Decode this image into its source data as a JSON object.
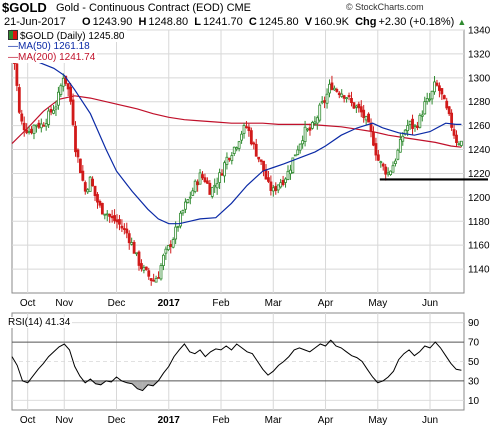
{
  "header": {
    "symbol": "$GOLD",
    "description": "Gold - Continuous Contract (EOD)  CME",
    "source": "© StockCharts.com",
    "date": "21-Jun-2017",
    "open_label": "O",
    "open": "1243.90",
    "high_label": "H",
    "high": "1248.80",
    "low_label": "L",
    "low": "1241.70",
    "close_label": "C",
    "close": "1245.80",
    "volume_label": "V",
    "volume": "160.9K",
    "change_label": "Chg",
    "change": "+2.30 (+0.18%)",
    "change_arrow": "▲"
  },
  "legend": {
    "price": "$GOLD (Daily) 1245.80",
    "ma50": "MA(50) 1261.18",
    "ma200": "MA(200) 1241.74"
  },
  "rsi_label": "RSI(14) 41.34",
  "colors": {
    "up": "#2f8a2f",
    "down": "#d11a1a",
    "ma50": "#0b2aa6",
    "ma200": "#c0102a",
    "grid": "#d8d8d8",
    "rsi": "#000000",
    "rsi_fill": "#7a7a7a"
  },
  "chart_data": [
    {
      "type": "candlestick",
      "title": "$GOLD (Daily)",
      "ylim": [
        1120,
        1340
      ],
      "y_ticks": [
        1140,
        1160,
        1180,
        1200,
        1220,
        1240,
        1260,
        1280,
        1300,
        1320,
        1340
      ],
      "x_ticks": [
        {
          "label": "Oct",
          "x": 0.3
        },
        {
          "label": "Nov",
          "x": 1.0
        },
        {
          "label": "Dec",
          "x": 2.0
        },
        {
          "label": "2017",
          "x": 3.0
        },
        {
          "label": "Feb",
          "x": 4.0
        },
        {
          "label": "Mar",
          "x": 5.0
        },
        {
          "label": "Apr",
          "x": 6.0
        },
        {
          "label": "May",
          "x": 7.0
        },
        {
          "label": "Jun",
          "x": 8.0
        }
      ],
      "x_range": [
        0.0,
        8.65
      ],
      "price_path": [
        [
          0.0,
          1318
        ],
        [
          0.05,
          1312
        ],
        [
          0.1,
          1290
        ],
        [
          0.15,
          1265
        ],
        [
          0.25,
          1258
        ],
        [
          0.35,
          1255
        ],
        [
          0.45,
          1262
        ],
        [
          0.55,
          1260
        ],
        [
          0.65,
          1265
        ],
        [
          0.75,
          1272
        ],
        [
          0.85,
          1278
        ],
        [
          0.92,
          1290
        ],
        [
          0.98,
          1302
        ],
        [
          1.05,
          1295
        ],
        [
          1.1,
          1285
        ],
        [
          1.15,
          1275
        ],
        [
          1.2,
          1245
        ],
        [
          1.3,
          1225
        ],
        [
          1.4,
          1205
        ],
        [
          1.5,
          1215
        ],
        [
          1.6,
          1200
        ],
        [
          1.7,
          1190
        ],
        [
          1.8,
          1188
        ],
        [
          1.9,
          1182
        ],
        [
          2.0,
          1180
        ],
        [
          2.1,
          1175
        ],
        [
          2.2,
          1170
        ],
        [
          2.3,
          1160
        ],
        [
          2.4,
          1148
        ],
        [
          2.5,
          1140
        ],
        [
          2.6,
          1135
        ],
        [
          2.7,
          1130
        ],
        [
          2.8,
          1135
        ],
        [
          2.9,
          1150
        ],
        [
          3.0,
          1158
        ],
        [
          3.1,
          1168
        ],
        [
          3.2,
          1180
        ],
        [
          3.3,
          1192
        ],
        [
          3.4,
          1200
        ],
        [
          3.5,
          1210
        ],
        [
          3.6,
          1218
        ],
        [
          3.7,
          1215
        ],
        [
          3.8,
          1205
        ],
        [
          3.9,
          1212
        ],
        [
          4.0,
          1220
        ],
        [
          4.1,
          1232
        ],
        [
          4.2,
          1238
        ],
        [
          4.3,
          1245
        ],
        [
          4.4,
          1255
        ],
        [
          4.5,
          1260
        ],
        [
          4.6,
          1245
        ],
        [
          4.7,
          1235
        ],
        [
          4.8,
          1225
        ],
        [
          4.9,
          1210
        ],
        [
          5.0,
          1205
        ],
        [
          5.1,
          1212
        ],
        [
          5.2,
          1215
        ],
        [
          5.3,
          1222
        ],
        [
          5.4,
          1235
        ],
        [
          5.5,
          1245
        ],
        [
          5.6,
          1255
        ],
        [
          5.7,
          1256
        ],
        [
          5.8,
          1262
        ],
        [
          5.9,
          1275
        ],
        [
          6.0,
          1282
        ],
        [
          6.1,
          1295
        ],
        [
          6.2,
          1290
        ],
        [
          6.3,
          1288
        ],
        [
          6.4,
          1285
        ],
        [
          6.5,
          1278
        ],
        [
          6.6,
          1275
        ],
        [
          6.7,
          1270
        ],
        [
          6.8,
          1262
        ],
        [
          6.9,
          1250
        ],
        [
          7.0,
          1232
        ],
        [
          7.1,
          1225
        ],
        [
          7.2,
          1220
        ],
        [
          7.3,
          1228
        ],
        [
          7.4,
          1240
        ],
        [
          7.5,
          1255
        ],
        [
          7.6,
          1262
        ],
        [
          7.7,
          1258
        ],
        [
          7.8,
          1265
        ],
        [
          7.9,
          1278
        ],
        [
          8.0,
          1282
        ],
        [
          8.1,
          1295
        ],
        [
          8.2,
          1288
        ],
        [
          8.3,
          1275
        ],
        [
          8.4,
          1262
        ],
        [
          8.5,
          1248
        ],
        [
          8.6,
          1246
        ]
      ],
      "ma50": [
        [
          0.0,
          1322
        ],
        [
          0.4,
          1315
        ],
        [
          0.8,
          1308
        ],
        [
          1.0,
          1302
        ],
        [
          1.2,
          1290
        ],
        [
          1.5,
          1270
        ],
        [
          1.8,
          1240
        ],
        [
          2.0,
          1222
        ],
        [
          2.3,
          1205
        ],
        [
          2.6,
          1190
        ],
        [
          2.8,
          1182
        ],
        [
          3.0,
          1178
        ],
        [
          3.2,
          1178
        ],
        [
          3.4,
          1180
        ],
        [
          3.6,
          1182
        ],
        [
          3.9,
          1183
        ],
        [
          4.2,
          1195
        ],
        [
          4.5,
          1210
        ],
        [
          4.8,
          1222
        ],
        [
          5.0,
          1225
        ],
        [
          5.2,
          1228
        ],
        [
          5.5,
          1233
        ],
        [
          5.8,
          1238
        ],
        [
          6.0,
          1243
        ],
        [
          6.3,
          1252
        ],
        [
          6.6,
          1258
        ],
        [
          6.9,
          1262
        ],
        [
          7.1,
          1258
        ],
        [
          7.4,
          1254
        ],
        [
          7.7,
          1252
        ],
        [
          8.0,
          1255
        ],
        [
          8.3,
          1262
        ],
        [
          8.5,
          1261
        ],
        [
          8.6,
          1261
        ]
      ],
      "ma200": [
        [
          0.0,
          1245
        ],
        [
          0.3,
          1258
        ],
        [
          0.6,
          1272
        ],
        [
          0.9,
          1282
        ],
        [
          1.2,
          1285
        ],
        [
          1.5,
          1283
        ],
        [
          1.8,
          1280
        ],
        [
          2.1,
          1277
        ],
        [
          2.4,
          1274
        ],
        [
          2.7,
          1270
        ],
        [
          3.0,
          1267
        ],
        [
          3.3,
          1265
        ],
        [
          3.6,
          1264
        ],
        [
          3.9,
          1263
        ],
        [
          4.2,
          1262
        ],
        [
          4.5,
          1262
        ],
        [
          4.8,
          1262
        ],
        [
          5.1,
          1261
        ],
        [
          5.4,
          1261
        ],
        [
          5.7,
          1261
        ],
        [
          6.0,
          1260
        ],
        [
          6.3,
          1259
        ],
        [
          6.6,
          1257
        ],
        [
          6.9,
          1255
        ],
        [
          7.2,
          1252
        ],
        [
          7.5,
          1250
        ],
        [
          7.8,
          1248
        ],
        [
          8.1,
          1246
        ],
        [
          8.4,
          1243
        ],
        [
          8.6,
          1242
        ]
      ],
      "support_line": {
        "x0": 7.0,
        "x1": 8.65,
        "y": 1215
      }
    },
    {
      "type": "line",
      "title": "RSI(14)",
      "ylim": [
        0,
        100
      ],
      "y_ticks": [
        10,
        30,
        50,
        70,
        90
      ],
      "bands": [
        30,
        70
      ],
      "x_ticks_same_as_price": true,
      "rsi_path": [
        [
          0.0,
          55
        ],
        [
          0.1,
          46
        ],
        [
          0.2,
          30
        ],
        [
          0.3,
          28
        ],
        [
          0.4,
          35
        ],
        [
          0.5,
          42
        ],
        [
          0.6,
          48
        ],
        [
          0.7,
          55
        ],
        [
          0.8,
          60
        ],
        [
          0.9,
          65
        ],
        [
          1.0,
          68
        ],
        [
          1.1,
          62
        ],
        [
          1.2,
          45
        ],
        [
          1.3,
          35
        ],
        [
          1.4,
          28
        ],
        [
          1.5,
          32
        ],
        [
          1.6,
          27
        ],
        [
          1.7,
          26
        ],
        [
          1.8,
          30
        ],
        [
          1.9,
          29
        ],
        [
          2.0,
          34
        ],
        [
          2.1,
          30
        ],
        [
          2.2,
          28
        ],
        [
          2.3,
          27
        ],
        [
          2.4,
          22
        ],
        [
          2.5,
          20
        ],
        [
          2.6,
          26
        ],
        [
          2.7,
          25
        ],
        [
          2.8,
          30
        ],
        [
          2.9,
          38
        ],
        [
          3.0,
          45
        ],
        [
          3.1,
          55
        ],
        [
          3.2,
          62
        ],
        [
          3.3,
          68
        ],
        [
          3.4,
          60
        ],
        [
          3.5,
          58
        ],
        [
          3.6,
          62
        ],
        [
          3.7,
          55
        ],
        [
          3.8,
          60
        ],
        [
          3.9,
          63
        ],
        [
          4.0,
          62
        ],
        [
          4.1,
          66
        ],
        [
          4.2,
          62
        ],
        [
          4.3,
          68
        ],
        [
          4.4,
          64
        ],
        [
          4.5,
          60
        ],
        [
          4.6,
          58
        ],
        [
          4.7,
          50
        ],
        [
          4.8,
          42
        ],
        [
          4.9,
          36
        ],
        [
          5.0,
          40
        ],
        [
          5.1,
          46
        ],
        [
          5.2,
          50
        ],
        [
          5.3,
          55
        ],
        [
          5.4,
          62
        ],
        [
          5.5,
          64
        ],
        [
          5.6,
          62
        ],
        [
          5.7,
          60
        ],
        [
          5.8,
          64
        ],
        [
          5.9,
          68
        ],
        [
          6.0,
          66
        ],
        [
          6.1,
          72
        ],
        [
          6.2,
          66
        ],
        [
          6.3,
          64
        ],
        [
          6.4,
          60
        ],
        [
          6.5,
          56
        ],
        [
          6.6,
          54
        ],
        [
          6.7,
          50
        ],
        [
          6.8,
          42
        ],
        [
          6.9,
          34
        ],
        [
          7.0,
          28
        ],
        [
          7.1,
          30
        ],
        [
          7.2,
          34
        ],
        [
          7.3,
          40
        ],
        [
          7.4,
          52
        ],
        [
          7.5,
          58
        ],
        [
          7.6,
          62
        ],
        [
          7.7,
          56
        ],
        [
          7.8,
          60
        ],
        [
          7.9,
          66
        ],
        [
          8.0,
          64
        ],
        [
          8.1,
          70
        ],
        [
          8.2,
          64
        ],
        [
          8.3,
          56
        ],
        [
          8.4,
          48
        ],
        [
          8.5,
          42
        ],
        [
          8.6,
          41
        ]
      ]
    }
  ]
}
